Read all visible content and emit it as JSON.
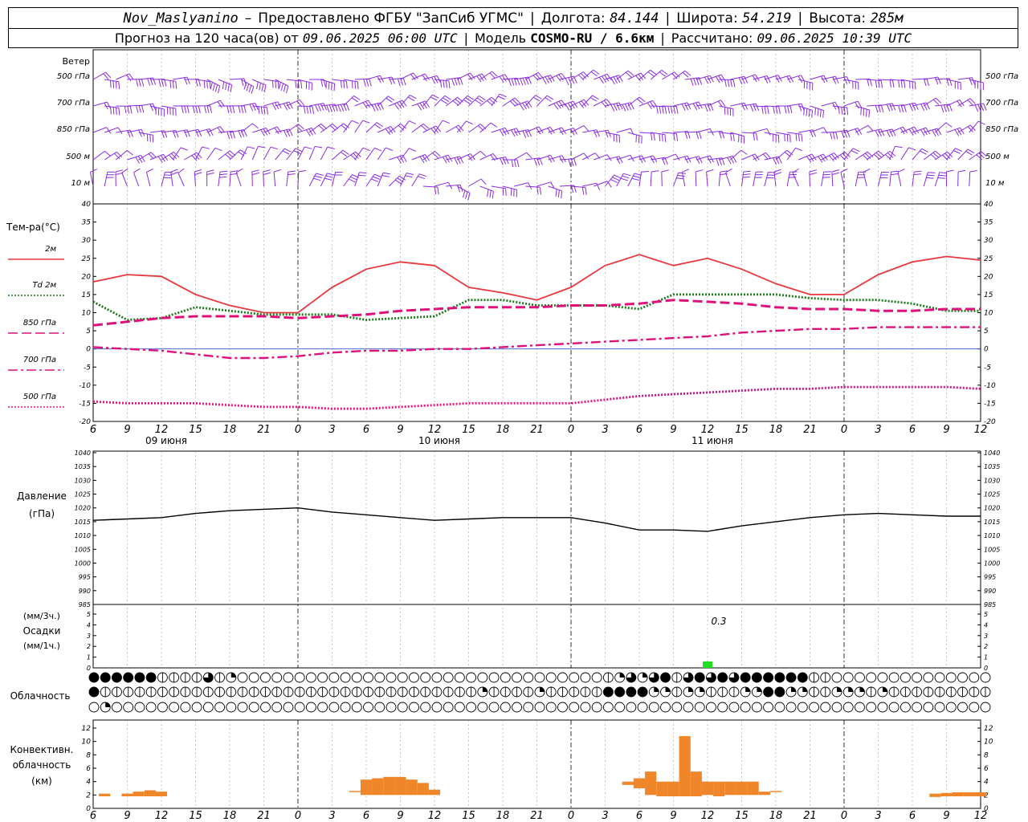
{
  "header": {
    "station": "Nov_Maslyanino",
    "provider": "Предоставлено ФГБУ \"ЗапСиб УГМС\"",
    "lon_label": "Долгота:",
    "lon": "84.144",
    "lat_label": "Широта:",
    "lat": "54.219",
    "alt_label": "Высота:",
    "alt": "285м",
    "forecast_label": "Прогноз на 120 часа(ов) от",
    "forecast_start": "09.06.2025 06:00 UTC",
    "model_label": "Модель",
    "model": "COSMO-RU / 6.6км",
    "calc_label": "Рассчитано:",
    "calc_time": "09.06.2025 10:39 UTC"
  },
  "wind_panel": {
    "title": "Ветер",
    "levels": [
      "500 гПа",
      "700 гПа",
      "850 гПа",
      "500 м",
      "10  м"
    ],
    "color": "#8a2be2"
  },
  "time_axis": {
    "hour_labels": [
      "6",
      "9",
      "12",
      "15",
      "18",
      "21",
      "0",
      "3",
      "6",
      "9",
      "12",
      "15",
      "18",
      "21",
      "0",
      "3",
      "6",
      "9",
      "12",
      "15",
      "18",
      "21",
      "0",
      "3",
      "6",
      "9",
      "12"
    ],
    "day_labels": [
      "09 июня",
      "10 июня",
      "11 июня"
    ]
  },
  "temp_panel": {
    "title": "Тем-ра(°C)",
    "legend": [
      {
        "label": "2м",
        "color": "#e8383d",
        "style": "solid"
      },
      {
        "label": "Td  2м",
        "color": "#1a7a1a",
        "style": "dotted"
      },
      {
        "label": "850 гПа",
        "color": "#e0107a",
        "style": "dash"
      },
      {
        "label": "700 гПа",
        "color": "#e0107a",
        "style": "dashdot"
      },
      {
        "label": "500 гПа",
        "color": "#e0107a",
        "style": "dot"
      }
    ]
  },
  "pressure_panel": {
    "title": "Давление",
    "unit": "(гПа)"
  },
  "precip_panel": {
    "unit3h": "(мм/3ч.)",
    "title": "Осадки",
    "unit1h": "(мм/1ч.)",
    "annotation": "0.3"
  },
  "cloud_panel": {
    "title": "Облачность"
  },
  "conv_panel": {
    "title1": "Конвективн.",
    "title2": "облачность",
    "unit": "(км)"
  },
  "chart_data": [
    {
      "type": "line",
      "title": "Тем-ра(°C)",
      "xlabel": "",
      "ylabel": "Тем-ра(°C)",
      "ylim": [
        -20,
        40
      ],
      "yticks": [
        -20,
        -15,
        -10,
        -5,
        0,
        5,
        10,
        15,
        20,
        25,
        30,
        35,
        40
      ],
      "x": [
        6,
        9,
        12,
        15,
        18,
        21,
        24,
        27,
        30,
        33,
        36,
        39,
        42,
        45,
        48,
        51,
        54,
        57,
        60,
        63,
        66,
        69,
        72,
        75,
        78,
        81,
        84
      ],
      "series": [
        {
          "name": "2м",
          "values": [
            18.5,
            20.5,
            20,
            15,
            12,
            10,
            10,
            17,
            22,
            24,
            23,
            17,
            15.5,
            13.5,
            17,
            23,
            26,
            23,
            25,
            22,
            18,
            15,
            15,
            20.5,
            24,
            25.5,
            24.5
          ]
        },
        {
          "name": "Td  2м",
          "values": [
            13,
            8,
            8.5,
            11.5,
            10.5,
            9.5,
            9.5,
            9.5,
            8,
            8.5,
            9,
            13.5,
            13.5,
            12,
            12,
            12,
            11,
            15,
            15,
            15,
            15,
            14,
            13.5,
            13.5,
            12.5,
            10.5,
            10.5
          ]
        },
        {
          "name": "850 гПа",
          "values": [
            6.5,
            7.5,
            8.5,
            9,
            9,
            9,
            8.5,
            9,
            9.5,
            10.5,
            11,
            11.5,
            11.5,
            11.5,
            12,
            12,
            12.5,
            13.5,
            13,
            12.5,
            11.5,
            11,
            11,
            10.5,
            10.5,
            11,
            11
          ]
        },
        {
          "name": "700 гПа",
          "values": [
            0.5,
            0,
            -0.5,
            -1.5,
            -2.5,
            -2.5,
            -2,
            -1,
            -0.5,
            -0.5,
            0,
            0,
            0.5,
            1,
            1.5,
            2,
            2.5,
            3,
            3.5,
            4.5,
            5,
            5.5,
            5.5,
            6,
            6,
            6,
            6
          ]
        },
        {
          "name": "500 гПа",
          "values": [
            -14.5,
            -15,
            -15,
            -15,
            -15.5,
            -16,
            -16,
            -16.5,
            -16.5,
            -16,
            -15.5,
            -15,
            -15,
            -15,
            -15,
            -14,
            -13,
            -12.5,
            -12,
            -11.5,
            -11,
            -11,
            -10.5,
            -10.5,
            -10.5,
            -10.5,
            -11
          ]
        }
      ]
    },
    {
      "type": "line",
      "title": "Давление",
      "xlabel": "",
      "ylabel": "(гПа)",
      "ylim": [
        985,
        1040
      ],
      "yticks": [
        985,
        990,
        995,
        1000,
        1005,
        1010,
        1015,
        1020,
        1025,
        1030,
        1035,
        1040
      ],
      "x": [
        6,
        9,
        12,
        15,
        18,
        21,
        24,
        27,
        30,
        33,
        36,
        39,
        42,
        45,
        48,
        51,
        54,
        57,
        60,
        63,
        66,
        69,
        72,
        75,
        78,
        81,
        84
      ],
      "series": [
        {
          "name": "",
          "values": [
            1015.5,
            1016,
            1016.5,
            1018,
            1019,
            1019.5,
            1020,
            1018.5,
            1017.5,
            1016.5,
            1015.5,
            1016,
            1016.5,
            1016.5,
            1016.5,
            1014.5,
            1012,
            1012,
            1011.5,
            1013.5,
            1015,
            1016.5,
            1017.5,
            1018,
            1017.5,
            1017,
            1017
          ]
        }
      ]
    },
    {
      "type": "bar",
      "title": "Осадки",
      "ylim": [
        0,
        5
      ],
      "yticks": [
        0,
        1,
        2,
        3,
        4,
        5
      ],
      "x": [
        60
      ],
      "values": [
        0.3
      ]
    },
    {
      "type": "bar",
      "title": "Конвективн. облачность",
      "ylabel": "(км)",
      "ylim": [
        0,
        12
      ],
      "yticks": [
        0,
        2,
        4,
        6,
        8,
        10,
        12
      ],
      "x": [
        7,
        9,
        10,
        11,
        12,
        29,
        30,
        31,
        32,
        33,
        34,
        35,
        36,
        53,
        54,
        55,
        56,
        57,
        58,
        59,
        60,
        61,
        62,
        63,
        64,
        65,
        66,
        80,
        81,
        82,
        83,
        84
      ],
      "bottom": [
        1.8,
        1.8,
        1.8,
        1.8,
        1.8,
        2.5,
        2,
        2,
        2,
        2,
        2,
        2,
        2,
        3.5,
        3,
        2,
        1.8,
        1.8,
        1.8,
        1.8,
        2,
        1.8,
        2,
        2,
        2,
        2,
        2.5,
        1.7,
        1.8,
        1.8,
        1.8,
        1.8
      ],
      "top": [
        2.2,
        2.2,
        2.5,
        2.7,
        2.5,
        2.6,
        4.3,
        4.5,
        4.7,
        4.7,
        4.3,
        3.8,
        2.8,
        4,
        4.5,
        5.5,
        4,
        4,
        10.8,
        5.5,
        4,
        4,
        4,
        4,
        4,
        2.5,
        2.6,
        2.2,
        2.3,
        2.4,
        2.4,
        2.4
      ]
    }
  ],
  "cloud_rows": [
    "FFFFFFHHHH3HQO0000000000000000000000000000000HQ3Q3FH3F3F3FFFFFFHH0000000000000000000000000000000000000000000FQ3FFHH000",
    "FHHHHHHHHHHHHHHHHHHHHHHHHHHHHHHHHHQHHHHQHHHHHFFFFQQHQQHHHQQFFQQHHQQQHQHHHHHHHHHHHHHHHHHHHHHHHHHHHHHHHHHHHHH000",
    "0Q000000000000000000000000000000000000000000000000000000000000000000000000000000000000000000000000000000000000000"
  ]
}
